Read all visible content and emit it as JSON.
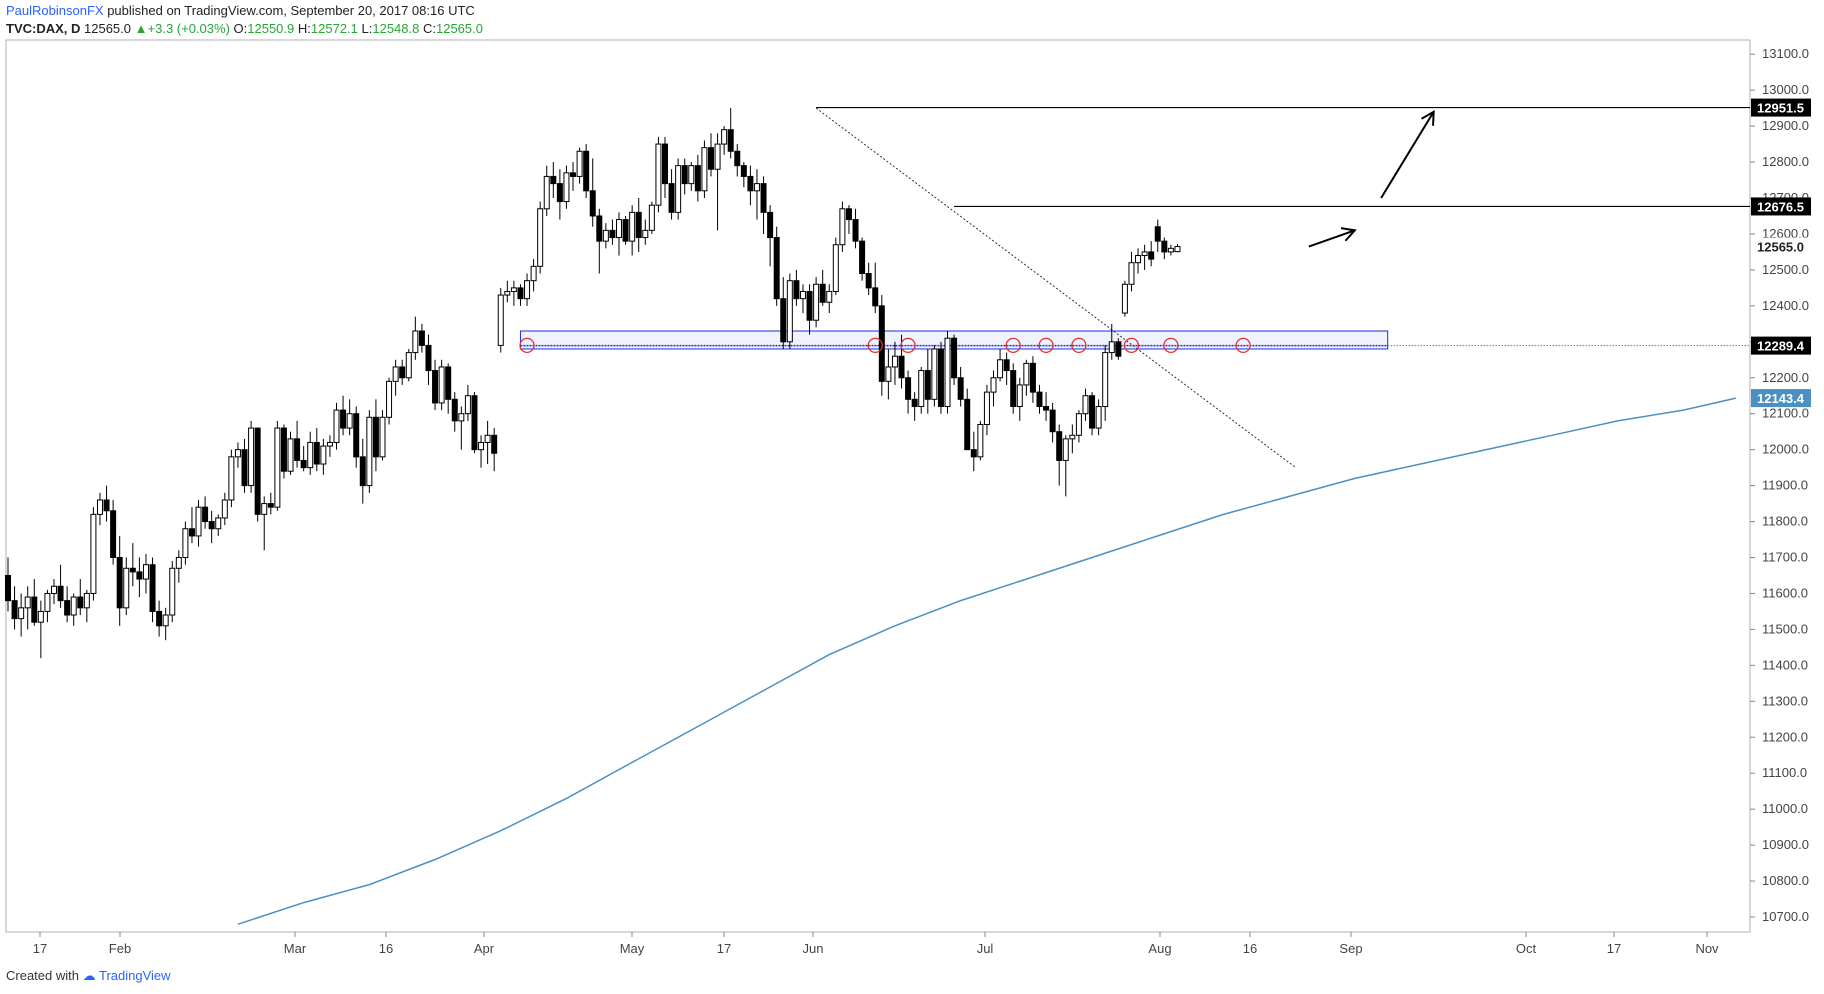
{
  "header": {
    "author": "PaulRobinsonFX",
    "published_text": "published on TradingView.com, September 20, 2017 08:16 UTC",
    "symbol": "TVC:DAX, D",
    "last": "12565.0",
    "change": "+3.3 (+0.03%)",
    "open_label": "O:",
    "open": "12550.9",
    "high_label": "H:",
    "high": "12572.1",
    "low_label": "L:",
    "low": "12548.8",
    "close_label": "C:",
    "close": "12565.0"
  },
  "footer": {
    "created_with": "Created with",
    "brand": "TradingView"
  },
  "chart_data": {
    "type": "candlestick",
    "title": "",
    "xlabel": "",
    "ylabel": "",
    "ylim": [
      10650,
      13150
    ],
    "y_ticks": [
      10700,
      10800,
      10900,
      11000,
      11100,
      11200,
      11300,
      11400,
      11500,
      11600,
      11700,
      11800,
      11900,
      12000,
      12100,
      12200,
      12300,
      12400,
      12500,
      12600,
      12700,
      12800,
      12900,
      13000,
      13100
    ],
    "x_ticks": [
      "17",
      "Feb",
      "Mar",
      "16",
      "Apr",
      "May",
      "17",
      "Jun",
      "Jul",
      "Aug",
      "16",
      "Sep",
      "Oct",
      "17",
      "Nov"
    ],
    "price_labels": {
      "resistance_high": "12951.5",
      "resistance_mid": "12676.5",
      "current": "12565.0",
      "support": "12289.4",
      "moving_average": "12143.4"
    },
    "colors": {
      "up_candle": "#ffffff",
      "down_candle": "#000000",
      "moving_average": "#4a90c2",
      "support_zone": "#1f2de0",
      "circles": "#e03131",
      "ma_label_bg": "#4a90c2",
      "price_label_bg": "#000000"
    },
    "ohlc": [
      [
        11650,
        11700,
        11550,
        11580
      ],
      [
        11580,
        11620,
        11500,
        11530
      ],
      [
        11530,
        11600,
        11480,
        11560
      ],
      [
        11560,
        11620,
        11500,
        11590
      ],
      [
        11590,
        11640,
        11510,
        11520
      ],
      [
        11520,
        11580,
        11420,
        11550
      ],
      [
        11550,
        11610,
        11520,
        11600
      ],
      [
        11600,
        11640,
        11570,
        11620
      ],
      [
        11620,
        11680,
        11560,
        11580
      ],
      [
        11580,
        11620,
        11520,
        11540
      ],
      [
        11540,
        11600,
        11510,
        11590
      ],
      [
        11590,
        11640,
        11540,
        11560
      ],
      [
        11560,
        11610,
        11520,
        11600
      ],
      [
        11600,
        11840,
        11580,
        11820
      ],
      [
        11820,
        11880,
        11790,
        11860
      ],
      [
        11860,
        11900,
        11800,
        11830
      ],
      [
        11830,
        11860,
        11680,
        11700
      ],
      [
        11700,
        11760,
        11510,
        11560
      ],
      [
        11560,
        11700,
        11540,
        11670
      ],
      [
        11670,
        11740,
        11620,
        11660
      ],
      [
        11660,
        11700,
        11590,
        11640
      ],
      [
        11640,
        11710,
        11600,
        11680
      ],
      [
        11680,
        11700,
        11520,
        11550
      ],
      [
        11550,
        11580,
        11480,
        11510
      ],
      [
        11510,
        11560,
        11470,
        11540
      ],
      [
        11540,
        11690,
        11520,
        11670
      ],
      [
        11670,
        11720,
        11630,
        11700
      ],
      [
        11700,
        11800,
        11680,
        11780
      ],
      [
        11780,
        11840,
        11740,
        11760
      ],
      [
        11760,
        11860,
        11730,
        11840
      ],
      [
        11840,
        11870,
        11780,
        11800
      ],
      [
        11800,
        11830,
        11740,
        11780
      ],
      [
        11780,
        11820,
        11760,
        11810
      ],
      [
        11810,
        11880,
        11790,
        11860
      ],
      [
        11860,
        12000,
        11840,
        11980
      ],
      [
        11980,
        12020,
        11950,
        12000
      ],
      [
        12000,
        12030,
        11880,
        11900
      ],
      [
        11900,
        12080,
        11880,
        12060
      ],
      [
        12060,
        12060,
        11800,
        11820
      ],
      [
        11820,
        11870,
        11720,
        11850
      ],
      [
        11850,
        11880,
        11820,
        11840
      ],
      [
        11840,
        12080,
        11830,
        12060
      ],
      [
        12060,
        12070,
        11920,
        11940
      ],
      [
        11940,
        12050,
        11930,
        12030
      ],
      [
        12030,
        12080,
        11950,
        11970
      ],
      [
        11970,
        12010,
        11940,
        11950
      ],
      [
        11950,
        12050,
        11930,
        12020
      ],
      [
        12020,
        12060,
        11940,
        11960
      ],
      [
        11960,
        12030,
        11930,
        12010
      ],
      [
        12010,
        12040,
        11980,
        12020
      ],
      [
        12020,
        12130,
        12000,
        12110
      ],
      [
        12110,
        12150,
        12040,
        12060
      ],
      [
        12060,
        12140,
        12040,
        12100
      ],
      [
        12100,
        12120,
        11950,
        11980
      ],
      [
        11980,
        12030,
        11850,
        11900
      ],
      [
        11900,
        12110,
        11880,
        12090
      ],
      [
        12090,
        12140,
        11940,
        11980
      ],
      [
        11980,
        12110,
        11970,
        12090
      ],
      [
        12090,
        12200,
        12070,
        12190
      ],
      [
        12190,
        12250,
        12150,
        12230
      ],
      [
        12230,
        12250,
        12180,
        12200
      ],
      [
        12200,
        12280,
        12190,
        12270
      ],
      [
        12270,
        12370,
        12250,
        12330
      ],
      [
        12330,
        12350,
        12270,
        12290
      ],
      [
        12290,
        12320,
        12180,
        12220
      ],
      [
        12220,
        12250,
        12110,
        12130
      ],
      [
        12130,
        12250,
        12110,
        12230
      ],
      [
        12230,
        12240,
        12100,
        12140
      ],
      [
        12140,
        12160,
        12050,
        12080
      ],
      [
        12080,
        12120,
        12000,
        12100
      ],
      [
        12100,
        12180,
        12080,
        12150
      ],
      [
        12150,
        12160,
        11990,
        12000
      ],
      [
        12000,
        12040,
        11950,
        12020
      ],
      [
        12020,
        12080,
        11960,
        12040
      ],
      [
        12040,
        12060,
        11940,
        11990
      ],
      [
        12290,
        12450,
        12270,
        12430
      ],
      [
        12430,
        12470,
        12410,
        12440
      ],
      [
        12440,
        12470,
        12400,
        12450
      ],
      [
        12450,
        12460,
        12400,
        12420
      ],
      [
        12420,
        12490,
        12400,
        12470
      ],
      [
        12470,
        12530,
        12440,
        12510
      ],
      [
        12510,
        12690,
        12490,
        12670
      ],
      [
        12670,
        12790,
        12650,
        12760
      ],
      [
        12760,
        12800,
        12700,
        12740
      ],
      [
        12740,
        12780,
        12640,
        12690
      ],
      [
        12690,
        12790,
        12670,
        12770
      ],
      [
        12770,
        12800,
        12720,
        12760
      ],
      [
        12760,
        12840,
        12740,
        12830
      ],
      [
        12830,
        12850,
        12700,
        12720
      ],
      [
        12720,
        12810,
        12620,
        12650
      ],
      [
        12650,
        12670,
        12490,
        12580
      ],
      [
        12580,
        12630,
        12560,
        12610
      ],
      [
        12610,
        12640,
        12570,
        12590
      ],
      [
        12590,
        12660,
        12540,
        12640
      ],
      [
        12640,
        12650,
        12570,
        12580
      ],
      [
        12580,
        12680,
        12540,
        12660
      ],
      [
        12660,
        12700,
        12550,
        12590
      ],
      [
        12590,
        12640,
        12570,
        12610
      ],
      [
        12610,
        12690,
        12600,
        12680
      ],
      [
        12680,
        12870,
        12660,
        12850
      ],
      [
        12850,
        12870,
        12700,
        12740
      ],
      [
        12740,
        12780,
        12640,
        12660
      ],
      [
        12660,
        12810,
        12640,
        12790
      ],
      [
        12790,
        12810,
        12710,
        12740
      ],
      [
        12740,
        12800,
        12720,
        12790
      ],
      [
        12790,
        12820,
        12690,
        12720
      ],
      [
        12720,
        12860,
        12700,
        12840
      ],
      [
        12840,
        12880,
        12760,
        12780
      ],
      [
        12780,
        12880,
        12610,
        12850
      ],
      [
        12850,
        12900,
        12820,
        12890
      ],
      [
        12890,
        12950,
        12810,
        12830
      ],
      [
        12830,
        12850,
        12760,
        12790
      ],
      [
        12790,
        12800,
        12730,
        12760
      ],
      [
        12760,
        12790,
        12680,
        12720
      ],
      [
        12720,
        12780,
        12640,
        12740
      ],
      [
        12740,
        12760,
        12600,
        12660
      ],
      [
        12660,
        12680,
        12510,
        12590
      ],
      [
        12590,
        12620,
        12400,
        12420
      ],
      [
        12420,
        12480,
        12280,
        12300
      ],
      [
        12300,
        12490,
        12280,
        12470
      ],
      [
        12470,
        12500,
        12400,
        12420
      ],
      [
        12420,
        12460,
        12380,
        12440
      ],
      [
        12440,
        12460,
        12320,
        12360
      ],
      [
        12360,
        12480,
        12340,
        12460
      ],
      [
        12460,
        12500,
        12400,
        12410
      ],
      [
        12410,
        12460,
        12380,
        12440
      ],
      [
        12440,
        12590,
        12430,
        12570
      ],
      [
        12570,
        12690,
        12550,
        12670
      ],
      [
        12670,
        12680,
        12600,
        12640
      ],
      [
        12640,
        12670,
        12560,
        12580
      ],
      [
        12580,
        12590,
        12470,
        12490
      ],
      [
        12490,
        12520,
        12430,
        12450
      ],
      [
        12450,
        12520,
        12380,
        12400
      ],
      [
        12400,
        12430,
        12150,
        12190
      ],
      [
        12190,
        12280,
        12140,
        12230
      ],
      [
        12230,
        12300,
        12180,
        12260
      ],
      [
        12260,
        12320,
        12170,
        12200
      ],
      [
        12200,
        12220,
        12100,
        12140
      ],
      [
        12140,
        12160,
        12080,
        12120
      ],
      [
        12120,
        12230,
        12100,
        12220
      ],
      [
        12220,
        12280,
        12100,
        12140
      ],
      [
        12140,
        12290,
        12120,
        12280
      ],
      [
        12280,
        12300,
        12100,
        12120
      ],
      [
        12120,
        12330,
        12100,
        12310
      ],
      [
        12310,
        12320,
        12180,
        12200
      ],
      [
        12200,
        12230,
        12120,
        12140
      ],
      [
        12140,
        12170,
        12000,
        12000
      ],
      [
        12000,
        12050,
        11940,
        11980
      ],
      [
        11980,
        12080,
        11970,
        12070
      ],
      [
        12070,
        12180,
        12040,
        12160
      ],
      [
        12160,
        12220,
        12120,
        12200
      ],
      [
        12200,
        12280,
        12190,
        12250
      ],
      [
        12250,
        12270,
        12180,
        12220
      ],
      [
        12220,
        12240,
        12100,
        12120
      ],
      [
        12120,
        12200,
        12080,
        12180
      ],
      [
        12180,
        12250,
        12150,
        12240
      ],
      [
        12240,
        12260,
        12130,
        12160
      ],
      [
        12160,
        12180,
        12100,
        12120
      ],
      [
        12120,
        12160,
        12080,
        12110
      ],
      [
        12110,
        12130,
        12020,
        12050
      ],
      [
        12050,
        12070,
        11900,
        11970
      ],
      [
        11970,
        12040,
        11870,
        12030
      ],
      [
        12030,
        12070,
        11990,
        12040
      ],
      [
        12040,
        12110,
        12020,
        12100
      ],
      [
        12100,
        12170,
        12080,
        12150
      ],
      [
        12150,
        12160,
        12040,
        12060
      ],
      [
        12060,
        12140,
        12040,
        12120
      ],
      [
        12120,
        12290,
        12080,
        12270
      ],
      [
        12270,
        12350,
        12250,
        12300
      ],
      [
        12300,
        12310,
        12250,
        12260
      ],
      [
        12380,
        12470,
        12370,
        12460
      ],
      [
        12460,
        12550,
        12440,
        12520
      ],
      [
        12520,
        12560,
        12490,
        12540
      ],
      [
        12540,
        12570,
        12500,
        12550
      ],
      [
        12550,
        12580,
        12510,
        12530
      ],
      [
        12620,
        12640,
        12550,
        12580
      ],
      [
        12580,
        12590,
        12530,
        12550
      ],
      [
        12550,
        12570,
        12540,
        12560
      ],
      [
        12550.9,
        12572.1,
        12548.8,
        12565.0
      ]
    ],
    "moving_average_200": [
      [
        35,
        10680
      ],
      [
        45,
        10740
      ],
      [
        55,
        10790
      ],
      [
        65,
        10860
      ],
      [
        75,
        10940
      ],
      [
        85,
        11030
      ],
      [
        95,
        11130
      ],
      [
        105,
        11230
      ],
      [
        115,
        11330
      ],
      [
        125,
        11430
      ],
      [
        135,
        11510
      ],
      [
        145,
        11580
      ],
      [
        155,
        11640
      ],
      [
        165,
        11700
      ],
      [
        175,
        11760
      ],
      [
        185,
        11820
      ],
      [
        195,
        11870
      ],
      [
        205,
        11920
      ],
      [
        215,
        11960
      ],
      [
        225,
        12000
      ],
      [
        235,
        12040
      ],
      [
        245,
        12080
      ],
      [
        255,
        12110
      ],
      [
        263,
        12143.4
      ]
    ],
    "resistance_lines": [
      {
        "start_index": 123,
        "end_index": 264,
        "value": 12951.5
      },
      {
        "start_index": 144,
        "end_index": 264,
        "value": 12676.5
      }
    ],
    "support_line": {
      "start_index": 0,
      "end_index": 264,
      "value": 12289.4
    },
    "support_zone": {
      "start_index": 78,
      "end_index": 210,
      "top": 12330,
      "bottom": 12280
    },
    "trendline": {
      "start": [
        123,
        12950
      ],
      "end": [
        196,
        11950
      ]
    },
    "circle_indices": [
      79,
      132,
      137,
      153,
      158,
      163,
      171,
      177,
      188
    ],
    "circle_value": 12290,
    "arrows": [
      {
        "from": [
          198,
          12565
        ],
        "to": [
          205,
          12610
        ]
      },
      {
        "from": [
          209,
          12700
        ],
        "to": [
          217,
          12940
        ]
      }
    ]
  }
}
